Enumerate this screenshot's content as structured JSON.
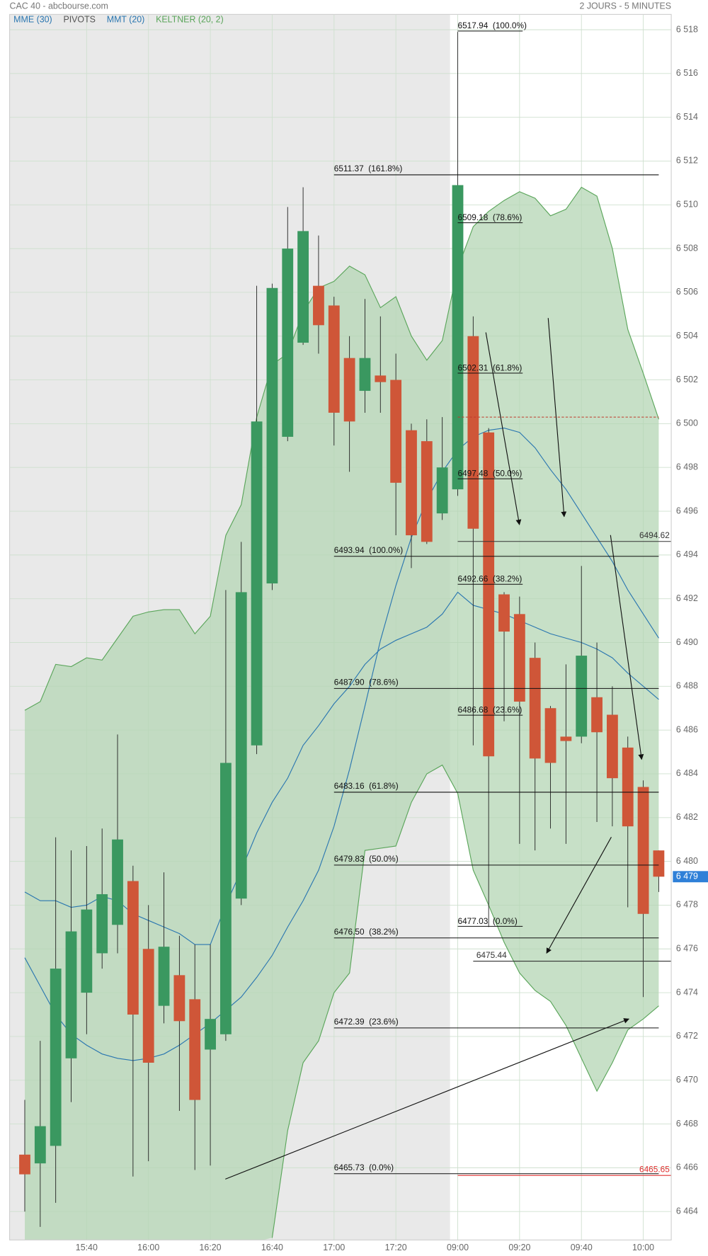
{
  "chart_data": {
    "type": "candlestick",
    "title": "CAC 40 - abcbourse.com",
    "subtitle": "2 JOURS - 5 MINUTES",
    "categories": [
      null,
      null,
      null,
      null,
      "15:40",
      null,
      null,
      null,
      "16:00",
      null,
      null,
      null,
      "16:20",
      null,
      null,
      null,
      "16:40",
      null,
      null,
      null,
      "17:00",
      null,
      null,
      null,
      "17:20",
      null,
      null,
      null,
      "09:00",
      null,
      null,
      null,
      "09:20",
      null,
      null,
      null,
      "09:40",
      null,
      null,
      null,
      "10:00",
      null
    ],
    "open": [
      6466.6,
      6466.2,
      6467.0,
      6471.0,
      6474.0,
      6475.8,
      6477.1,
      6479.1,
      6476.0,
      6473.4,
      6474.8,
      6473.7,
      6471.4,
      6472.1,
      6478.3,
      6485.3,
      6492.7,
      6499.4,
      6503.7,
      6506.3,
      6505.4,
      6503.0,
      6501.5,
      6502.2,
      6502.0,
      6499.7,
      6499.2,
      6495.9,
      6497.0,
      6504.0,
      6499.6,
      6492.2,
      6491.3,
      6489.3,
      6487.0,
      6485.7,
      6485.7,
      6487.5,
      6486.7,
      6485.2,
      6483.4,
      6480.5
    ],
    "high": [
      6469.1,
      6471.8,
      6481.1,
      6480.5,
      6480.7,
      6481.5,
      6485.8,
      6479.8,
      6478.0,
      6479.5,
      6476.6,
      6476.2,
      6476.2,
      6492.4,
      6494.6,
      6506.3,
      6506.4,
      6509.9,
      6510.8,
      6508.6,
      6505.8,
      6504.0,
      6505.7,
      6504.9,
      6503.2,
      6500.0,
      6500.2,
      6500.3,
      6517.9,
      6504.9,
      6499.8,
      6492.3,
      6492.1,
      6490.0,
      6487.1,
      6489.0,
      6493.5,
      6490.0,
      6488.0,
      6485.7,
      6483.7,
      6480.5
    ],
    "low": [
      6464.0,
      6463.3,
      6464.4,
      6469.0,
      6472.1,
      6475.1,
      6475.8,
      6465.6,
      6466.3,
      6472.6,
      6468.6,
      6465.9,
      6466.1,
      6471.8,
      6478.0,
      6484.9,
      6492.4,
      6499.2,
      6503.6,
      6503.2,
      6499.0,
      6497.8,
      6500.5,
      6500.5,
      6494.9,
      6493.4,
      6494.5,
      6495.6,
      6496.7,
      6485.3,
      6477.0,
      6486.4,
      6480.8,
      6480.5,
      6481.5,
      6480.8,
      6485.4,
      6481.8,
      6481.6,
      6477.9,
      6473.8,
      6478.6
    ],
    "close": [
      6465.7,
      6467.9,
      6475.1,
      6476.8,
      6477.8,
      6478.5,
      6481.0,
      6473.0,
      6470.8,
      6476.1,
      6472.7,
      6469.1,
      6472.8,
      6484.5,
      6492.3,
      6500.1,
      6506.2,
      6508.0,
      6508.8,
      6504.5,
      6500.5,
      6500.1,
      6503.0,
      6501.9,
      6497.3,
      6494.9,
      6494.6,
      6498.0,
      6510.9,
      6495.2,
      6484.8,
      6490.5,
      6487.3,
      6484.7,
      6484.5,
      6485.5,
      6489.4,
      6485.9,
      6483.8,
      6481.6,
      6477.6,
      6479.3
    ],
    "up_color": "#3a9860",
    "down_color": "#cf5638",
    "ylim": [
      6462.7,
      6518.7
    ],
    "yticks": [
      {
        "value": 6464,
        "label": "6 464"
      },
      {
        "value": 6466,
        "label": "6 466"
      },
      {
        "value": 6468,
        "label": "6 468"
      },
      {
        "value": 6470,
        "label": "6 470"
      },
      {
        "value": 6472,
        "label": "6 472"
      },
      {
        "value": 6474,
        "label": "6 474"
      },
      {
        "value": 6476,
        "label": "6 476"
      },
      {
        "value": 6478,
        "label": "6 478"
      },
      {
        "value": 6480,
        "label": "6 480"
      },
      {
        "value": 6482,
        "label": "6 482"
      },
      {
        "value": 6484,
        "label": "6 484"
      },
      {
        "value": 6486,
        "label": "6 486"
      },
      {
        "value": 6488,
        "label": "6 488"
      },
      {
        "value": 6490,
        "label": "6 490"
      },
      {
        "value": 6492,
        "label": "6 492"
      },
      {
        "value": 6494,
        "label": "6 494"
      },
      {
        "value": 6496,
        "label": "6 496"
      },
      {
        "value": 6498,
        "label": "6 498"
      },
      {
        "value": 6500,
        "label": "6 500"
      },
      {
        "value": 6502,
        "label": "6 502"
      },
      {
        "value": 6504,
        "label": "6 504"
      },
      {
        "value": 6506,
        "label": "6 506"
      },
      {
        "value": 6508,
        "label": "6 508"
      },
      {
        "value": 6510,
        "label": "6 510"
      },
      {
        "value": 6512,
        "label": "6 512"
      },
      {
        "value": 6514,
        "label": "6 514"
      },
      {
        "value": 6516,
        "label": "6 516"
      },
      {
        "value": 6518,
        "label": "6 518"
      }
    ],
    "grid": true,
    "overlays": [
      {
        "name": "MME (30)",
        "color": "#2a76b0",
        "values": [
          6478.6,
          6478.2,
          6478.2,
          6477.9,
          6478.0,
          6478.4,
          6478.2,
          6477.6,
          6477.3,
          6477.0,
          6476.7,
          6476.2,
          6476.2,
          6478.0,
          6479.6,
          6481.3,
          6482.7,
          6483.8,
          6485.3,
          6486.2,
          6487.2,
          6488.0,
          6489.0,
          6489.7,
          6490.1,
          6490.4,
          6490.7,
          6491.3,
          6492.3,
          6491.7,
          6491.5,
          6491.3,
          6491.0,
          6490.7,
          6490.4,
          6490.2,
          6490.0,
          6489.7,
          6489.3,
          6488.6,
          6488.0,
          6487.4
        ]
      },
      {
        "name": "PIVOTS",
        "color": "#555555"
      },
      {
        "name": "MMT (20)",
        "color": "#2a76b0",
        "values": [
          6475.6,
          6474.3,
          6473.0,
          6472.1,
          6471.6,
          6471.2,
          6471.0,
          6470.9,
          6471.0,
          6471.2,
          6471.6,
          6472.1,
          6472.6,
          6473.2,
          6473.8,
          6474.7,
          6475.7,
          6477.0,
          6478.2,
          6479.6,
          6481.6,
          6484.2,
          6487.1,
          6490.1,
          6492.6,
          6494.8,
          6496.5,
          6497.8,
          6498.8,
          6499.4,
          6499.7,
          6499.8,
          6499.6,
          6498.9,
          6497.9,
          6497.0,
          6495.9,
          6494.8,
          6493.7,
          6492.4,
          6491.3,
          6490.2
        ]
      },
      {
        "name": "KELTNER (20, 2)",
        "color": "#5aa55a",
        "upper": [
          6486.9,
          6487.3,
          6489.0,
          6488.9,
          6489.3,
          6489.2,
          6490.2,
          6491.2,
          6491.4,
          6491.5,
          6491.5,
          6490.4,
          6491.2,
          6494.9,
          6496.3,
          6500.3,
          6502.7,
          6503.2,
          6505.1,
          6506.2,
          6506.5,
          6507.2,
          6506.8,
          6505.3,
          6505.8,
          6504.0,
          6502.9,
          6503.8,
          6507.1,
          6509.0,
          6509.7,
          6510.2,
          6510.6,
          6510.3,
          6509.5,
          6509.8,
          6510.8,
          6510.4,
          6508.0,
          6504.3,
          6502.3,
          6500.2
        ],
        "lower": [
          null,
          null,
          null,
          null,
          null,
          null,
          null,
          null,
          null,
          null,
          null,
          null,
          null,
          null,
          null,
          null,
          6462.8,
          6467.7,
          6470.8,
          6471.8,
          6474.0,
          6474.9,
          6480.5,
          6480.6,
          6480.7,
          6482.7,
          6484.0,
          6484.4,
          6483.1,
          6479.6,
          6478.0,
          6476.3,
          6474.9,
          6474.1,
          6473.6,
          6472.5,
          6471.0,
          6469.5,
          6470.8,
          6472.3,
          6472.8,
          6473.4
        ]
      }
    ],
    "fib_a": [
      {
        "value": 6511.37,
        "label": "6511.37  (161.8%)"
      },
      {
        "value": 6493.94,
        "label": "6493.94  (100.0%)"
      },
      {
        "value": 6487.9,
        "label": "6487.90  (78.6%)"
      },
      {
        "value": 6483.16,
        "label": "6483.16  (61.8%)"
      },
      {
        "value": 6479.83,
        "label": "6479.83  (50.0%)"
      },
      {
        "value": 6476.5,
        "label": "6476.50  (38.2%)"
      },
      {
        "value": 6472.39,
        "label": "6472.39  (23.6%)"
      },
      {
        "value": 6465.73,
        "label": "6465.73  (0.0%)"
      }
    ],
    "fib_b": [
      {
        "value": 6517.94,
        "label": "6517.94  (100.0%)"
      },
      {
        "value": 6509.18,
        "label": "6509.18  (78.6%)"
      },
      {
        "value": 6502.31,
        "label": "6502.31  (61.8%)"
      },
      {
        "value": 6497.48,
        "label": "6497.48  (50.0%)"
      },
      {
        "value": 6492.66,
        "label": "6492.66  (38.2%)"
      },
      {
        "value": 6486.68,
        "label": "6486.68  (23.6%)"
      },
      {
        "value": 6477.03,
        "label": "6477.03  (0.0%)"
      }
    ],
    "levels": [
      {
        "value": 6494.62,
        "label": "6494.62",
        "color": "#333333"
      },
      {
        "value": 6475.44,
        "label": "6475.44",
        "color": "#333333"
      },
      {
        "value": 6465.65,
        "label": "6465.65",
        "color": "#e03030"
      }
    ],
    "dashed_level": {
      "value": 6500.3,
      "color": "#c0392b"
    },
    "last_price": {
      "value": 6479.3,
      "label": "6 479",
      "color": "#2f80d8"
    }
  }
}
